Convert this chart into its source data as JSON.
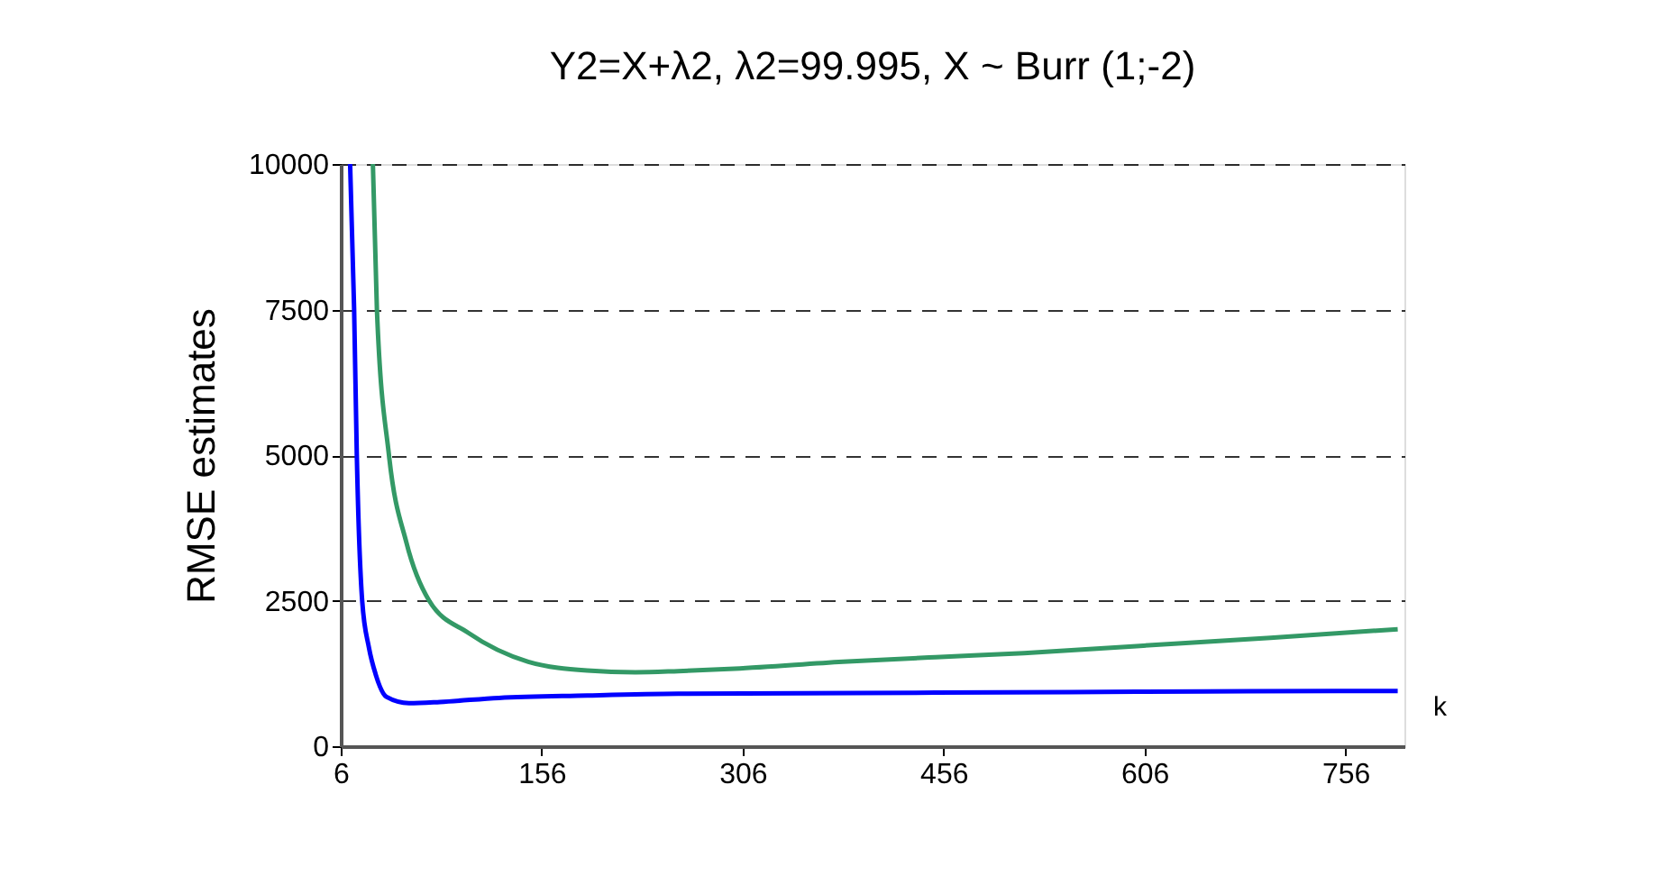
{
  "chart_data": {
    "type": "line",
    "title": "Y2=X+λ2,  λ2=99.995,  X ~ Burr (1;-2)",
    "xlabel": "k",
    "ylabel": "RMSE estimates",
    "xlim": [
      6,
      800
    ],
    "xticks": [
      6,
      156,
      306,
      456,
      606,
      756
    ],
    "ylim": [
      0,
      10000
    ],
    "yticks": [
      0,
      2500,
      5000,
      7500,
      10000
    ],
    "grid": "y",
    "legend": false,
    "series": [
      {
        "color": "#0000ff",
        "x": [
          13,
          16,
          18,
          22,
          27,
          32,
          40,
          57,
          80,
          124,
          190,
          258,
          350,
          450,
          550,
          650,
          750,
          795
        ],
        "values": [
          10000,
          7500,
          5000,
          2500,
          1700,
          1240,
          850,
          740,
          760,
          830,
          870,
          900,
          910,
          920,
          930,
          940,
          950,
          950
        ]
      },
      {
        "color": "#339966",
        "x": [
          30,
          33,
          42,
          55,
          72,
          101,
          146,
          190,
          226,
          258,
          300,
          381,
          450,
          516,
          600,
          700,
          795
        ],
        "values": [
          10000,
          7500,
          5000,
          3500,
          2500,
          1950,
          1450,
          1300,
          1270,
          1290,
          1330,
          1450,
          1530,
          1600,
          1720,
          1860,
          2010
        ]
      }
    ]
  }
}
